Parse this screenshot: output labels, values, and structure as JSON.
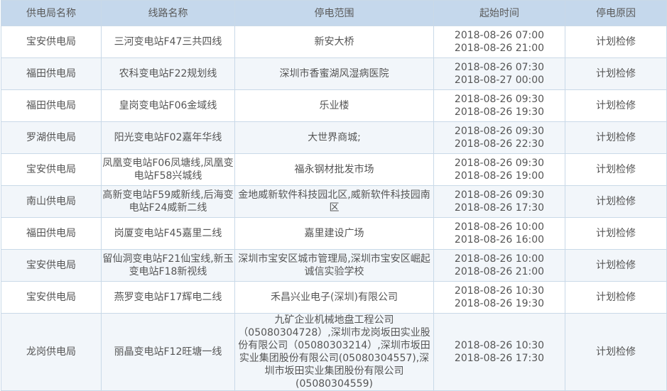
{
  "columns": [
    "供电局名称",
    "线路名称",
    "停电范围",
    "起始时间",
    "停电原因"
  ],
  "rows": [
    {
      "bureau": "宝安供电局",
      "line": "三河变电站F47三共四线",
      "area": "新安大桥",
      "start": "2018-08-26 07:00",
      "end": "2018-08-26 21:00",
      "reason": "计划检修"
    },
    {
      "bureau": "福田供电局",
      "line": "农科变电站F22规划线",
      "area": "深圳市香蜜湖风湿病医院",
      "start": "2018-08-26 07:30",
      "end": "2018-08-27 00:00",
      "reason": "计划检修"
    },
    {
      "bureau": "福田供电局",
      "line": "皇岗变电站F06金域线",
      "area": "乐业楼",
      "start": "2018-08-26 09:30",
      "end": "2018-08-26 19:30",
      "reason": "计划检修"
    },
    {
      "bureau": "罗湖供电局",
      "line": "阳光变电站F02嘉年华线",
      "area": "大世界商城;",
      "start": "2018-08-26 09:30",
      "end": "2018-08-26 22:30",
      "reason": "计划检修"
    },
    {
      "bureau": "宝安供电局",
      "line": "凤凰变电站F06凤塘线,凤凰变电站F58兴城线",
      "area": "福永钢材批发市场",
      "start": "2018-08-26 09:30",
      "end": "2018-08-26 19:00",
      "reason": "计划检修"
    },
    {
      "bureau": "南山供电局",
      "line": "高新变电站F59威新线,后海变电站F24威新二线",
      "area": "金地威新软件科技园北区,威新软件科技园南区",
      "start": "2018-08-26 09:30",
      "end": "2018-08-26 17:30",
      "reason": "计划检修"
    },
    {
      "bureau": "福田供电局",
      "line": "岗厦变电站F45嘉里二线",
      "area": "嘉里建设广场",
      "start": "2018-08-26 10:00",
      "end": "2018-08-26 16:00",
      "reason": "计划检修"
    },
    {
      "bureau": "宝安供电局",
      "line": "留仙洞变电站F21仙宝线,新玉变电站F18新视线",
      "area": "深圳市宝安区城市管理局,深圳市宝安区崛起诚信实验学校",
      "start": "2018-08-26 10:00",
      "end": "2018-08-26 21:00",
      "reason": "计划检修"
    },
    {
      "bureau": "宝安供电局",
      "line": "燕罗变电站F17辉电二线",
      "area": "禾昌兴业电子(深圳)有限公司",
      "start": "2018-08-26 10:30",
      "end": "2018-08-26 19:30",
      "reason": "计划检修"
    },
    {
      "bureau": "龙岗供电局",
      "line": "丽晶变电站F12旺塘一线",
      "area": "九矿企业机械地盘工程公司（05080304728）,深圳市龙岗坂田实业股份有限公司（05080303214）,深圳市坂田实业集团股份有限公司(05080304557),深圳市坂田实业集团股份有限公司(05080304559)",
      "start": "2018-08-26 10:30",
      "end": "2018-08-26 17:30",
      "reason": "计划检修"
    }
  ]
}
